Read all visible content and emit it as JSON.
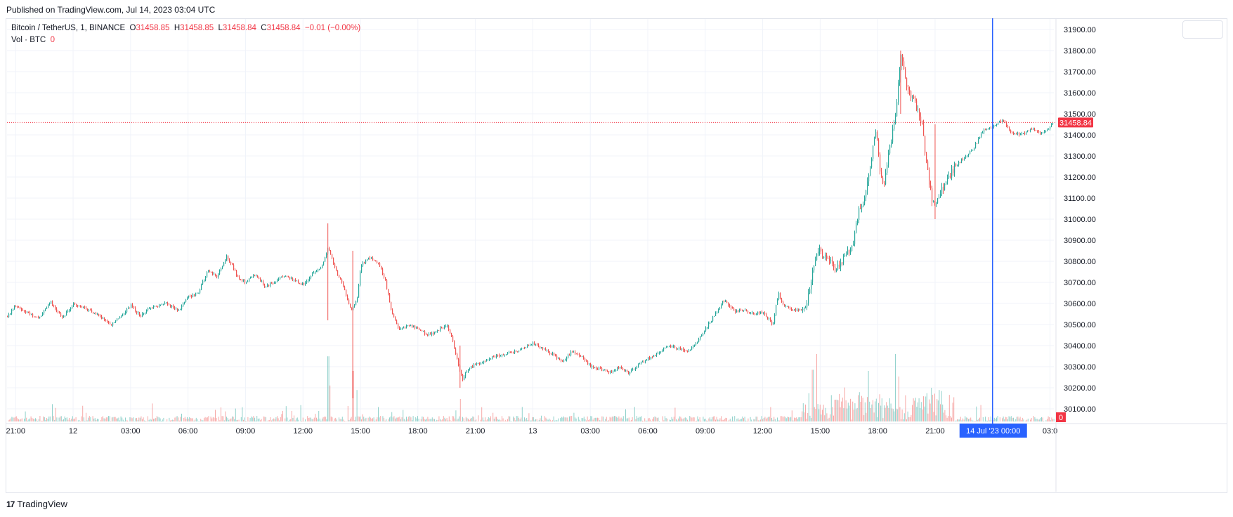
{
  "header": {
    "published": "Published on TradingView.com, Jul 14, 2023 03:04 UTC"
  },
  "legend": {
    "symbol": "Bitcoin / TetherUS, 1, BINANCE",
    "o_label": "O",
    "o_value": "31458.85",
    "h_label": "H",
    "h_value": "31458.85",
    "l_label": "L",
    "l_value": "31458.84",
    "c_label": "C",
    "c_value": "31458.84",
    "change": "−0.01 (−0.00%)",
    "vol_label": "Vol · BTC",
    "vol_value": "0"
  },
  "footer": {
    "brand": "TradingView",
    "logo": "17"
  },
  "colors": {
    "up": "#26a69a",
    "down": "#ef5350",
    "crosshair": "#2962ff",
    "price_tag": "#f23645",
    "grid": "#f0f3fa"
  },
  "chart_data": {
    "type": "candlestick",
    "symbol": "BTCUSDT",
    "interval": "1",
    "exchange": "BINANCE",
    "ylim": [
      30040,
      31950
    ],
    "y_ticks": [
      "31900.00",
      "31800.00",
      "31700.00",
      "31600.00",
      "31500.00",
      "31400.00",
      "31300.00",
      "31200.00",
      "31100.00",
      "31000.00",
      "30900.00",
      "30800.00",
      "30700.00",
      "30600.00",
      "30500.00",
      "30400.00",
      "30300.00",
      "30200.00",
      "30100.00"
    ],
    "y_tick_values": [
      31900,
      31800,
      31700,
      31600,
      31500,
      31400,
      31300,
      31200,
      31100,
      31000,
      30900,
      30800,
      30700,
      30600,
      30500,
      30400,
      30300,
      30200,
      30100
    ],
    "x_ticks": [
      "21:00",
      "12",
      "03:00",
      "06:00",
      "09:00",
      "12:00",
      "15:00",
      "18:00",
      "21:00",
      "13",
      "03:00",
      "06:00",
      "09:00",
      "12:00",
      "15:00",
      "18:00",
      "21:00",
      "03:0"
    ],
    "x_tick_hours": [
      0,
      3,
      6,
      9,
      12,
      15,
      18,
      21,
      24,
      27,
      30,
      33,
      36,
      39,
      42,
      45,
      48,
      54
    ],
    "x_range_hours": [
      -0.45,
      54.2
    ],
    "crosshair": {
      "hour": 51,
      "label": "14 Jul '23   00:00"
    },
    "last_price": {
      "value": 31458.84,
      "label": "31458.84"
    },
    "volume_label": "0",
    "price_path": [
      [
        -0.45,
        30540
      ],
      [
        0,
        30590
      ],
      [
        0.5,
        30560
      ],
      [
        1.2,
        30530
      ],
      [
        1.8,
        30610
      ],
      [
        2.4,
        30530
      ],
      [
        3,
        30600
      ],
      [
        4,
        30560
      ],
      [
        5,
        30500
      ],
      [
        6,
        30590
      ],
      [
        6.5,
        30540
      ],
      [
        7,
        30580
      ],
      [
        7.8,
        30600
      ],
      [
        8.5,
        30570
      ],
      [
        9,
        30630
      ],
      [
        9.5,
        30650
      ],
      [
        10,
        30750
      ],
      [
        10.5,
        30730
      ],
      [
        11,
        30820
      ],
      [
        11.3,
        30780
      ],
      [
        11.6,
        30720
      ],
      [
        12,
        30700
      ],
      [
        12.5,
        30740
      ],
      [
        13,
        30680
      ],
      [
        14,
        30730
      ],
      [
        15,
        30690
      ],
      [
        15.5,
        30740
      ],
      [
        16,
        30780
      ],
      [
        16.3,
        30870
      ],
      [
        16.6,
        30780
      ],
      [
        17,
        30700
      ],
      [
        17.3,
        30620
      ],
      [
        17.5,
        30560
      ],
      [
        17.8,
        30620
      ],
      [
        18,
        30780
      ],
      [
        18.5,
        30820
      ],
      [
        19,
        30780
      ],
      [
        19.3,
        30700
      ],
      [
        19.6,
        30560
      ],
      [
        20,
        30470
      ],
      [
        20.5,
        30500
      ],
      [
        21,
        30480
      ],
      [
        21.5,
        30450
      ],
      [
        22,
        30470
      ],
      [
        22.5,
        30500
      ],
      [
        22.8,
        30420
      ],
      [
        23.1,
        30300
      ],
      [
        23.3,
        30240
      ],
      [
        23.6,
        30290
      ],
      [
        24,
        30310
      ],
      [
        25,
        30350
      ],
      [
        26,
        30370
      ],
      [
        27,
        30410
      ],
      [
        28,
        30360
      ],
      [
        28.5,
        30320
      ],
      [
        29,
        30370
      ],
      [
        29.5,
        30350
      ],
      [
        30,
        30300
      ],
      [
        30.5,
        30290
      ],
      [
        31,
        30270
      ],
      [
        31.5,
        30300
      ],
      [
        32,
        30270
      ],
      [
        32.5,
        30310
      ],
      [
        33,
        30340
      ],
      [
        33.5,
        30360
      ],
      [
        34,
        30400
      ],
      [
        34.5,
        30390
      ],
      [
        35,
        30370
      ],
      [
        35.5,
        30410
      ],
      [
        36,
        30480
      ],
      [
        36.5,
        30550
      ],
      [
        37,
        30620
      ],
      [
        37.5,
        30560
      ],
      [
        38,
        30570
      ],
      [
        38.5,
        30550
      ],
      [
        39,
        30560
      ],
      [
        39.5,
        30500
      ],
      [
        39.8,
        30650
      ],
      [
        40,
        30600
      ],
      [
        40.5,
        30570
      ],
      [
        41,
        30570
      ],
      [
        41.3,
        30610
      ],
      [
        41.6,
        30760
      ],
      [
        41.9,
        30850
      ],
      [
        42.2,
        30820
      ],
      [
        42.5,
        30800
      ],
      [
        42.8,
        30760
      ],
      [
        43.1,
        30800
      ],
      [
        43.4,
        30840
      ],
      [
        43.7,
        30880
      ],
      [
        44,
        31050
      ],
      [
        44.3,
        31100
      ],
      [
        44.6,
        31250
      ],
      [
        44.9,
        31440
      ],
      [
        45.1,
        31220
      ],
      [
        45.3,
        31160
      ],
      [
        45.6,
        31340
      ],
      [
        45.9,
        31470
      ],
      [
        46.2,
        31780
      ],
      [
        46.4,
        31680
      ],
      [
        46.6,
        31600
      ],
      [
        46.8,
        31580
      ],
      [
        47.1,
        31500
      ],
      [
        47.3,
        31440
      ],
      [
        47.6,
        31220
      ],
      [
        47.8,
        31100
      ],
      [
        48,
        31080
      ],
      [
        48.5,
        31170
      ],
      [
        49,
        31250
      ],
      [
        49.5,
        31290
      ],
      [
        50,
        31340
      ],
      [
        50.5,
        31420
      ],
      [
        51,
        31440
      ],
      [
        51.5,
        31470
      ],
      [
        52,
        31410
      ],
      [
        52.5,
        31400
      ],
      [
        53,
        31430
      ],
      [
        53.5,
        31400
      ],
      [
        54,
        31440
      ],
      [
        54.2,
        31458.84
      ]
    ],
    "volume_spikes": [
      [
        7.1,
        0.16
      ],
      [
        16.3,
        0.58
      ],
      [
        16.4,
        0.32
      ],
      [
        17.6,
        0.45
      ],
      [
        17.8,
        0.28
      ],
      [
        23.2,
        0.2
      ],
      [
        41.6,
        0.46
      ],
      [
        41.8,
        0.6
      ],
      [
        45.9,
        0.6
      ],
      [
        46.1,
        0.4
      ],
      [
        44.5,
        0.45
      ],
      [
        47.8,
        0.3
      ],
      [
        48.2,
        0.28
      ]
    ]
  }
}
